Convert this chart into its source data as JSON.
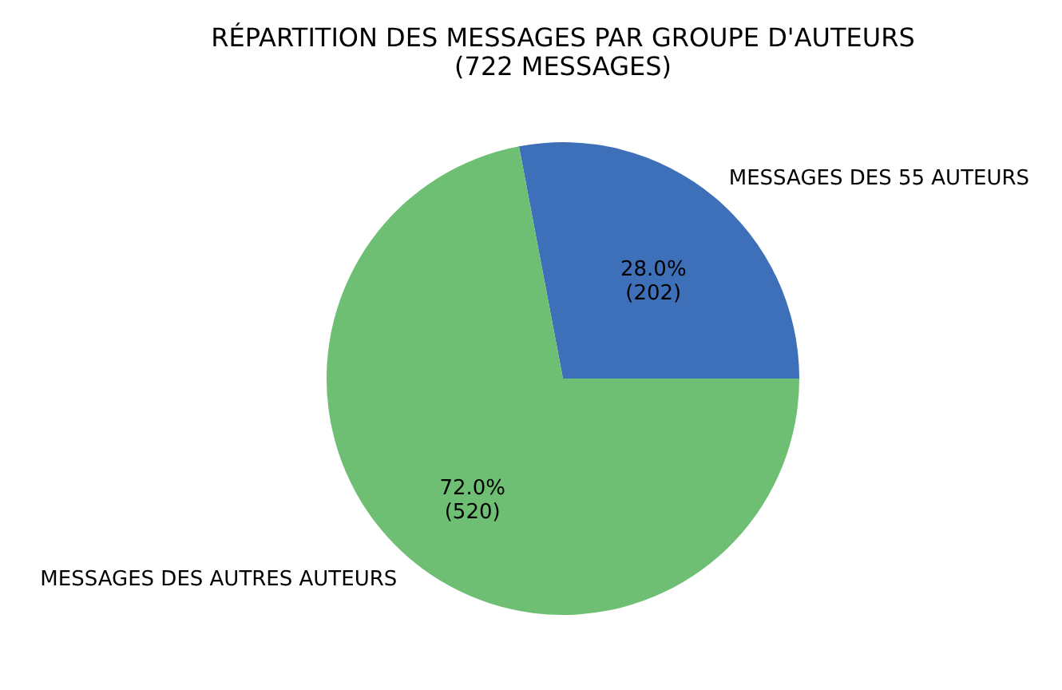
{
  "chart_data": {
    "type": "pie",
    "title": [
      "RÉPARTITION DES MESSAGES PAR GROUPE D'AUTEURS",
      "(722 MESSAGES)"
    ],
    "categories": [
      "MESSAGES DES 55 AUTEURS",
      "MESSAGES DES AUTRES AUTEURS"
    ],
    "values": [
      202,
      520
    ],
    "colors": [
      "#3d70b8",
      "#6ebf73"
    ],
    "value_labels": [
      "28.0%\n(202)",
      "72.0%\n(520)"
    ],
    "legend": false
  }
}
